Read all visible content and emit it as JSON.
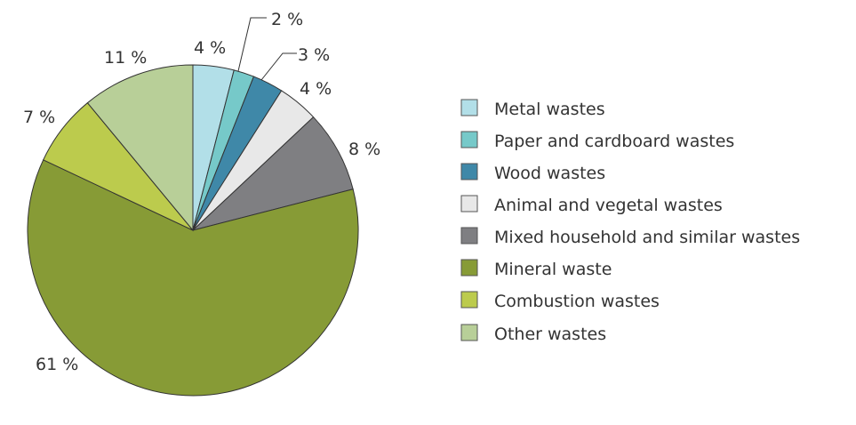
{
  "chart_data": {
    "type": "pie",
    "title": "",
    "unit": "%",
    "legend_position": "right",
    "series": [
      {
        "name": "Metal wastes",
        "value": 4,
        "label": "4 %",
        "color": "#b2dfe8"
      },
      {
        "name": "Paper and cardboard wastes",
        "value": 2,
        "label": "2 %",
        "color": "#76c9c9"
      },
      {
        "name": "Wood wastes",
        "value": 3,
        "label": "3 %",
        "color": "#3f88a8"
      },
      {
        "name": "Animal and vegetal wastes",
        "value": 4,
        "label": "4 %",
        "color": "#e8e8e8"
      },
      {
        "name": "Mixed household and similar wastes",
        "value": 8,
        "label": "8 %",
        "color": "#7f7f82"
      },
      {
        "name": "Mineral waste",
        "value": 61,
        "label": "61 %",
        "color": "#879b36"
      },
      {
        "name": "Combustion wastes",
        "value": 7,
        "label": "7 %",
        "color": "#bccb4d"
      },
      {
        "name": "Other wastes",
        "value": 11,
        "label": "11 %",
        "color": "#b8cf98"
      }
    ]
  }
}
